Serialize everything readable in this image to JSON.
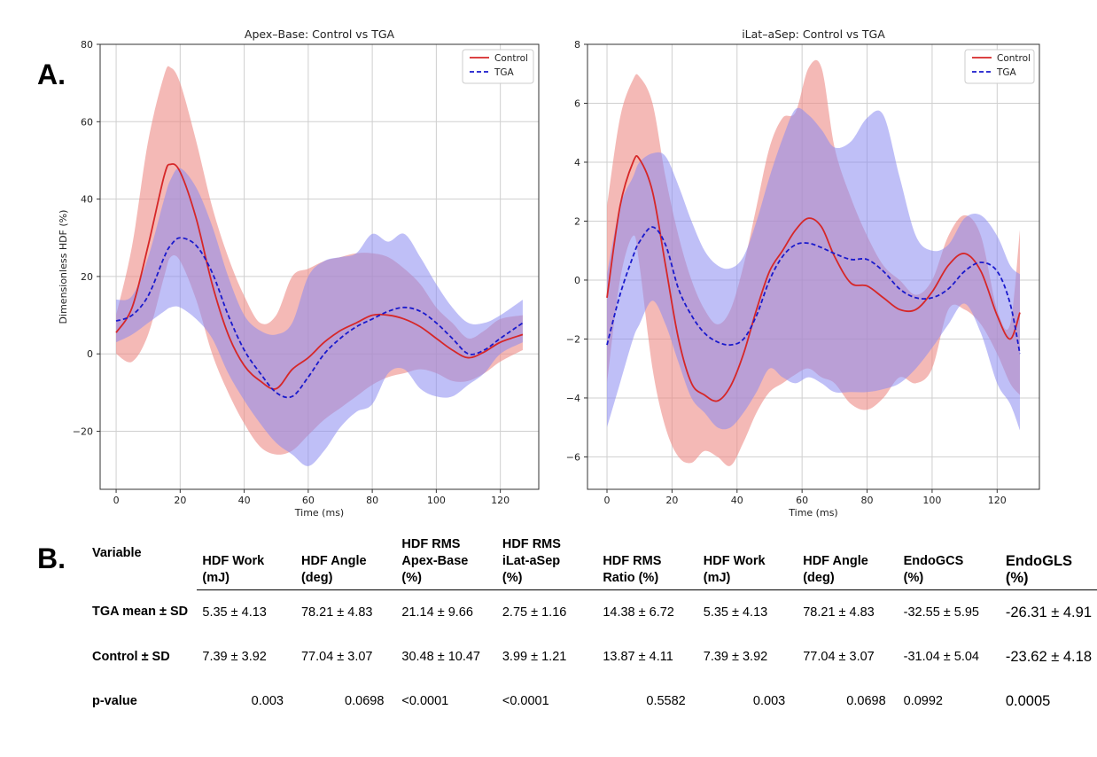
{
  "panel_labels": {
    "a": "A.",
    "b": "B."
  },
  "colors": {
    "control": "#d62728",
    "tga": "#1a1acc",
    "control_band": "#ec8a86",
    "tga_band": "#8a8af0"
  },
  "chart_data": [
    {
      "type": "line",
      "title": "Apex–Base: Control vs TGA",
      "xlabel": "Time (ms)",
      "ylabel": "Dimensionless HDF (%)",
      "xlim": [
        -5,
        132
      ],
      "ylim": [
        -35,
        80
      ],
      "xticks": [
        0,
        20,
        40,
        60,
        80,
        100,
        120
      ],
      "yticks": [
        -20,
        0,
        20,
        40,
        60,
        80
      ],
      "legend": {
        "position": "top-right",
        "entries": [
          "Control",
          "TGA"
        ]
      },
      "x": [
        0,
        5,
        10,
        15,
        17,
        20,
        25,
        30,
        35,
        40,
        45,
        50,
        55,
        60,
        65,
        70,
        75,
        80,
        85,
        90,
        95,
        100,
        105,
        110,
        115,
        120,
        127
      ],
      "series": [
        {
          "name": "Control",
          "style": "solid",
          "values": [
            5.5,
            12,
            28,
            46,
            49,
            47,
            35,
            18,
            5,
            -3,
            -7,
            -9,
            -4,
            -1,
            3,
            6,
            8,
            10,
            10,
            9,
            7,
            4,
            1,
            -1,
            0.5,
            3,
            5
          ],
          "upper": [
            10,
            28,
            55,
            72,
            74,
            70,
            55,
            38,
            25,
            15,
            8,
            10,
            20,
            22,
            24,
            25,
            26,
            26,
            25,
            22,
            18,
            12,
            8,
            4,
            6,
            9,
            10
          ],
          "lower": [
            0,
            -2,
            5,
            20,
            25,
            24,
            14,
            0,
            -10,
            -18,
            -24,
            -26,
            -25,
            -21,
            -17,
            -14,
            -11,
            -8,
            -6,
            -5,
            -4,
            -5,
            -7,
            -7,
            -5,
            -2,
            1
          ]
        },
        {
          "name": "TGA",
          "style": "dashed",
          "values": [
            8.5,
            10,
            15,
            25,
            28,
            30,
            28,
            21,
            10,
            1,
            -5,
            -10,
            -11,
            -6,
            0,
            4,
            7,
            9,
            11,
            12,
            11,
            8,
            4,
            0,
            1,
            4,
            8
          ],
          "upper": [
            14,
            15,
            25,
            40,
            45,
            48,
            43,
            33,
            20,
            10,
            6,
            5,
            8,
            20,
            24,
            25,
            26,
            31,
            29,
            31,
            25,
            18,
            12,
            8,
            8,
            10,
            14
          ],
          "lower": [
            3,
            5,
            8,
            11,
            12,
            12,
            9,
            4,
            -5,
            -12,
            -18,
            -23,
            -26,
            -29,
            -25,
            -19,
            -15,
            -13,
            -5,
            -4,
            -9,
            -11,
            -11,
            -8,
            -5,
            0,
            3
          ]
        }
      ]
    },
    {
      "type": "line",
      "title": "iLat–aSep: Control vs TGA",
      "xlabel": "Time (ms)",
      "ylabel": "",
      "xlim": [
        -6,
        133
      ],
      "ylim": [
        -7.1,
        8
      ],
      "xticks": [
        0,
        20,
        40,
        60,
        80,
        100,
        120
      ],
      "yticks": [
        -6,
        -4,
        -2,
        0,
        2,
        4,
        6,
        8
      ],
      "legend": {
        "position": "top-right",
        "entries": [
          "Control",
          "TGA"
        ]
      },
      "x": [
        0,
        4,
        8,
        10,
        14,
        18,
        22,
        26,
        30,
        34,
        38,
        42,
        46,
        50,
        54,
        58,
        62,
        66,
        70,
        75,
        80,
        85,
        90,
        95,
        100,
        105,
        110,
        115,
        120,
        124,
        127
      ],
      "series": [
        {
          "name": "Control",
          "style": "solid",
          "values": [
            -0.6,
            2.5,
            4.0,
            4.1,
            3.0,
            0.5,
            -2.0,
            -3.5,
            -3.9,
            -4.1,
            -3.6,
            -2.5,
            -1.0,
            0.3,
            1.0,
            1.7,
            2.1,
            1.8,
            0.8,
            -0.1,
            -0.2,
            -0.6,
            -1.0,
            -1.0,
            -0.4,
            0.5,
            0.9,
            0.3,
            -1.2,
            -2.0,
            -1.1
          ],
          "upper": [
            2.5,
            5.5,
            6.8,
            6.9,
            6.0,
            3.5,
            1.5,
            0.0,
            -1.0,
            -1.5,
            -1.0,
            0.5,
            2.5,
            4.5,
            5.5,
            5.7,
            7.2,
            7.2,
            4.5,
            2.8,
            1.5,
            0.5,
            0.0,
            -0.5,
            0.0,
            1.5,
            2.2,
            1.5,
            -1.0,
            -1.5,
            1.7
          ],
          "lower": [
            -3.5,
            0.0,
            1.5,
            0.5,
            -3.0,
            -5.0,
            -6.0,
            -6.2,
            -5.8,
            -6.0,
            -6.3,
            -5.5,
            -4.5,
            -3.8,
            -3.5,
            -3.2,
            -3.0,
            -3.3,
            -3.5,
            -4.2,
            -4.4,
            -4.0,
            -3.3,
            -3.5,
            -3.0,
            -1.0,
            -1.0,
            -1.5,
            -2.5,
            -3.5,
            -3.9
          ]
        },
        {
          "name": "TGA",
          "style": "dashed",
          "values": [
            -2.2,
            -0.5,
            0.8,
            1.3,
            1.8,
            1.2,
            -0.3,
            -1.2,
            -1.8,
            -2.1,
            -2.2,
            -2.0,
            -1.2,
            0.0,
            0.8,
            1.2,
            1.25,
            1.1,
            0.9,
            0.7,
            0.7,
            0.3,
            -0.3,
            -0.6,
            -0.6,
            -0.3,
            0.3,
            0.6,
            0.3,
            -0.8,
            -2.5
          ],
          "upper": [
            0.2,
            2.5,
            3.5,
            4.0,
            4.3,
            4.2,
            3.2,
            2.0,
            1.0,
            0.5,
            0.4,
            0.8,
            2.0,
            3.5,
            4.8,
            5.8,
            5.6,
            5.1,
            4.5,
            4.7,
            5.5,
            5.6,
            3.5,
            1.5,
            1.0,
            1.2,
            2.1,
            2.2,
            1.5,
            0.5,
            0.2
          ],
          "lower": [
            -5.0,
            -3.5,
            -2.0,
            -1.5,
            -0.7,
            -1.5,
            -2.8,
            -4.0,
            -4.5,
            -5.0,
            -5.0,
            -4.5,
            -3.8,
            -3.0,
            -3.3,
            -3.5,
            -3.3,
            -3.5,
            -3.8,
            -3.8,
            -3.8,
            -3.7,
            -3.5,
            -3.0,
            -2.3,
            -1.5,
            -0.8,
            -1.8,
            -3.5,
            -4.2,
            -5.1
          ]
        }
      ]
    }
  ],
  "table": {
    "headers": [
      [
        "Variable"
      ],
      [
        "HDF Work",
        "(mJ)"
      ],
      [
        "HDF Angle",
        "(deg)"
      ],
      [
        "HDF RMS",
        "Apex-Base",
        "(%)"
      ],
      [
        "HDF RMS",
        "iLat-aSep",
        "(%)"
      ],
      [
        "HDF RMS",
        "Ratio (%)"
      ],
      [
        "HDF Work",
        "(mJ)"
      ],
      [
        "HDF Angle",
        "(deg)"
      ],
      [
        "EndoGCS",
        "(%)"
      ],
      [
        "EndoGLS",
        "(%)"
      ]
    ],
    "rows": [
      {
        "label": "TGA mean ± SD",
        "cells": [
          "5.35 ± 4.13",
          "78.21 ± 4.83",
          "21.14 ± 9.66",
          "2.75 ± 1.16",
          "14.38 ± 6.72",
          "5.35 ± 4.13",
          "78.21 ± 4.83",
          "-32.55 ± 5.95",
          "-26.31 ± 4.91"
        ]
      },
      {
        "label": "Control ± SD",
        "cells": [
          "7.39 ± 3.92",
          "77.04 ± 3.07",
          "30.48 ± 10.47",
          "3.99 ± 1.21",
          "13.87 ± 4.11",
          "7.39 ± 3.92",
          "77.04 ± 3.07",
          "-31.04 ± 5.04",
          "-23.62 ± 4.18"
        ]
      },
      {
        "label": "p-value",
        "cells": [
          "0.003",
          "0.0698",
          "<0.0001",
          "<0.0001",
          "0.5582",
          "0.003",
          "0.0698",
          "0.0992",
          "0.0005"
        ]
      }
    ]
  }
}
